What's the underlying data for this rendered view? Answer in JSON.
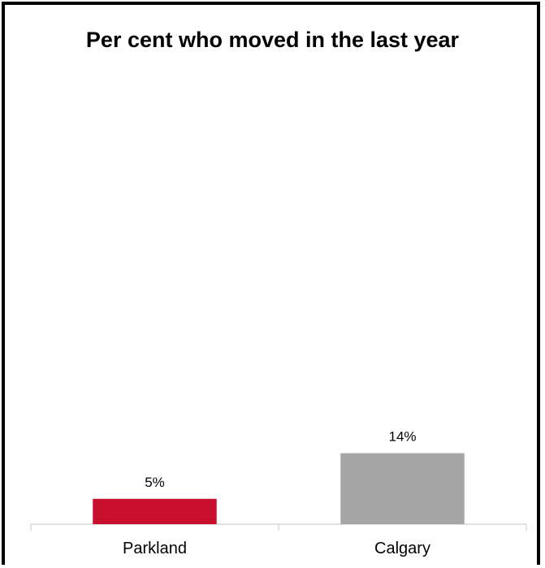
{
  "chart_data": {
    "type": "bar",
    "title": "Per cent who moved in the last year",
    "categories": [
      "Parkland",
      "Calgary"
    ],
    "values": [
      5,
      14
    ],
    "value_labels": [
      "5%",
      "14%"
    ],
    "colors": [
      "#c8102e",
      "#a6a6a6"
    ],
    "xlabel": "",
    "ylabel": "",
    "ylim": [
      0,
      80
    ],
    "grid": false,
    "legend": "none"
  }
}
